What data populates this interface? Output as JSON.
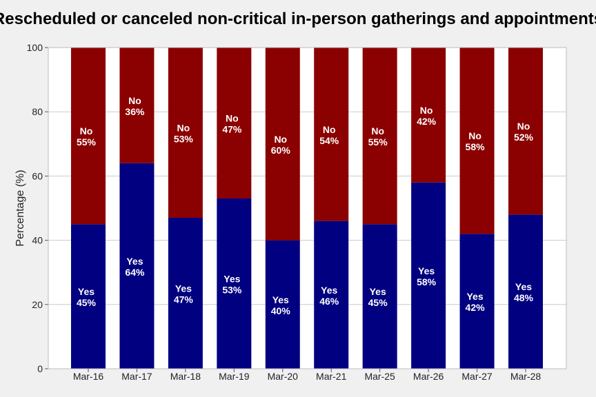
{
  "chart_data": {
    "type": "bar",
    "stacked": true,
    "title": "Rescheduled or canceled non-critical in-person gatherings and appointments",
    "xlabel": "",
    "ylabel": "Percentage (%)",
    "ylim": [
      0,
      100
    ],
    "yticks": [
      0,
      20,
      40,
      60,
      80,
      100
    ],
    "grid": "horizontal",
    "categories": [
      "Mar-16",
      "Mar-17",
      "Mar-18",
      "Mar-19",
      "Mar-20",
      "Mar-21",
      "Mar-25",
      "Mar-26",
      "Mar-27",
      "Mar-28"
    ],
    "series": [
      {
        "name": "Yes",
        "color": "#000080",
        "values": [
          45,
          64,
          47,
          53,
          40,
          46,
          45,
          58,
          42,
          48
        ]
      },
      {
        "name": "No",
        "color": "#8b0000",
        "values": [
          55,
          36,
          53,
          47,
          60,
          54,
          55,
          42,
          58,
          52
        ]
      }
    ]
  }
}
